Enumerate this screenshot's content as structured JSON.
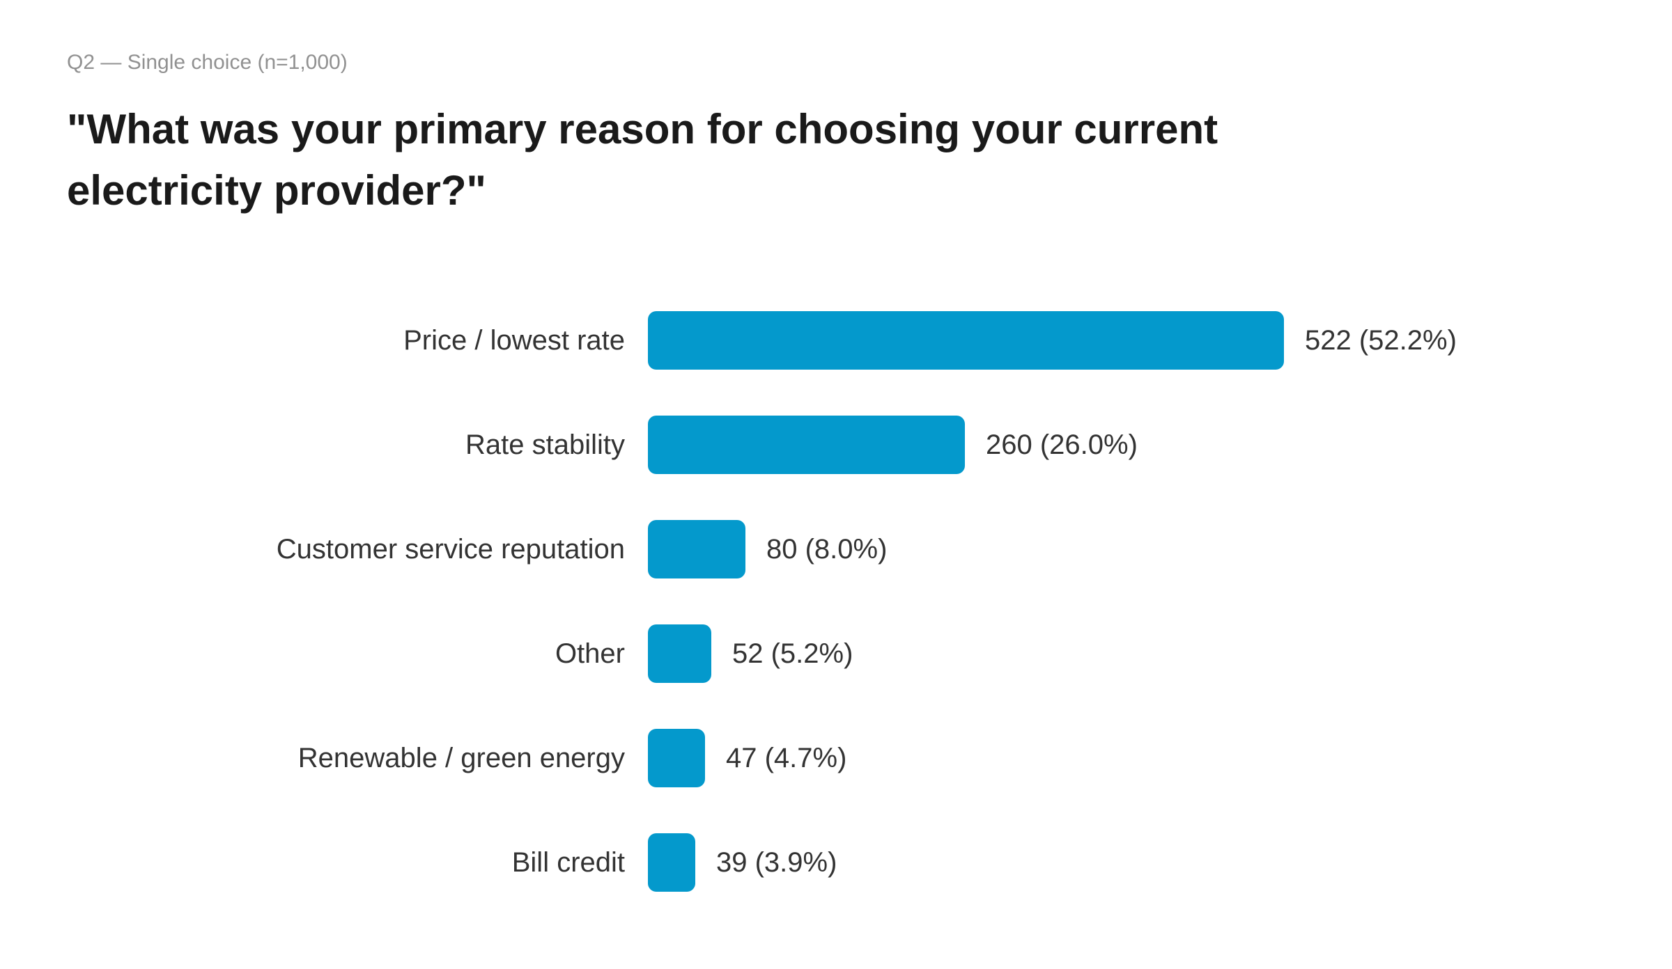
{
  "page": {
    "background": "#ffffff"
  },
  "header": {
    "subtitle": "Q2 — Single choice (n=1,000)",
    "title": "\"What was your primary reason for choosing your current electricity provider?\""
  },
  "chart_data": {
    "type": "bar",
    "orientation": "horizontal",
    "title": "\"What was your primary reason for choosing your current electricity provider?\"",
    "subtitle": "Q2 — Single choice (n=1,000)",
    "n": 1000,
    "categories": [
      "Price / lowest rate",
      "Rate stability",
      "Customer service reputation",
      "Other",
      "Renewable / green energy",
      "Bill credit"
    ],
    "values": [
      522,
      260,
      80,
      52,
      47,
      39
    ],
    "percents": [
      52.2,
      26.0,
      8.0,
      5.2,
      4.7,
      3.9
    ],
    "value_labels": [
      "522 (52.2%)",
      "260 (26.0%)",
      "80 (8.0%)",
      "52 (5.2%)",
      "47 (4.7%)",
      "39 (3.9%)"
    ],
    "bar_color": "#0499cc",
    "label_color": "#333333",
    "xlim": [
      0,
      522
    ],
    "grid": false,
    "legend": false
  }
}
